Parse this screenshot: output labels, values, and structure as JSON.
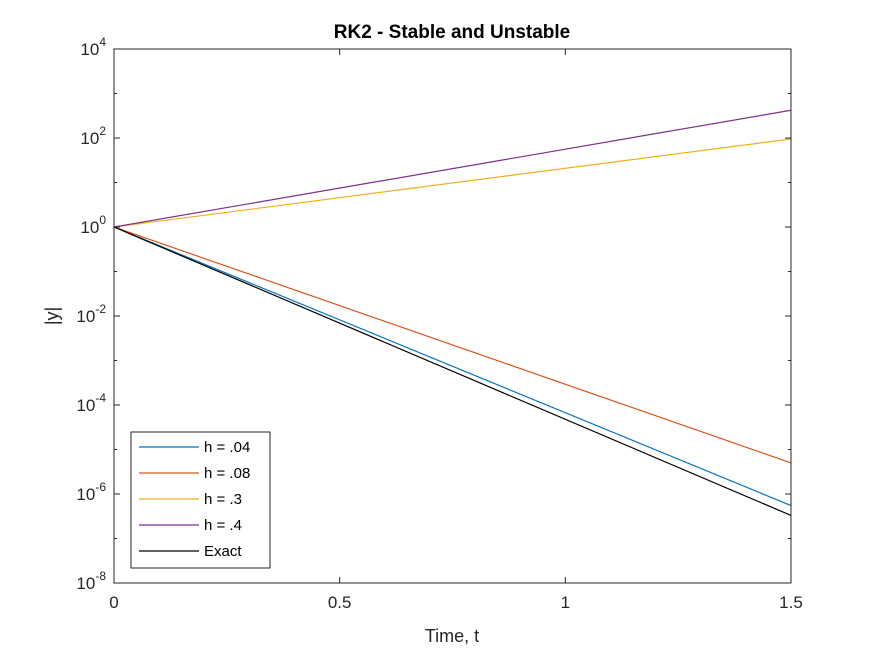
{
  "chart_data": {
    "type": "line",
    "title": "RK2 - Stable and Unstable",
    "xlabel": "Time, t",
    "ylabel": "|y|",
    "xlim": [
      0,
      1.5
    ],
    "ylim": [
      1e-08,
      10000.0
    ],
    "yscale": "log",
    "grid": false,
    "legend_location": "bottom-left",
    "x_ticks": [
      {
        "value": 0,
        "label": "0"
      },
      {
        "value": 0.5,
        "label": "0.5"
      },
      {
        "value": 1,
        "label": "1"
      },
      {
        "value": 1.5,
        "label": "1.5"
      }
    ],
    "y_ticks": [
      {
        "value": 1e-08,
        "base": "10",
        "exp": "-8"
      },
      {
        "value": 1e-06,
        "base": "10",
        "exp": "-6"
      },
      {
        "value": 0.0001,
        "base": "10",
        "exp": "-4"
      },
      {
        "value": 0.01,
        "base": "10",
        "exp": "-2"
      },
      {
        "value": 1,
        "base": "10",
        "exp": "0"
      },
      {
        "value": 100.0,
        "base": "10",
        "exp": "2"
      },
      {
        "value": 10000.0,
        "base": "10",
        "exp": "4"
      }
    ],
    "series": [
      {
        "name": "h = .04",
        "color": "#0072BD",
        "x": [
          0,
          1.5
        ],
        "y": [
          1,
          5.5e-07
        ]
      },
      {
        "name": "h = .08",
        "color": "#D95319",
        "x": [
          0,
          1.5
        ],
        "y": [
          1,
          5e-06
        ]
      },
      {
        "name": "h = .3",
        "color": "#EDB120",
        "x": [
          0,
          1.5
        ],
        "y": [
          1,
          95
        ]
      },
      {
        "name": "h = .4",
        "color": "#7E2F8E",
        "x": [
          0,
          1.5
        ],
        "y": [
          1,
          420
        ]
      },
      {
        "name": "Exact",
        "color": "#000000",
        "x": [
          0,
          1.5
        ],
        "y": [
          1,
          3.3e-07
        ]
      }
    ]
  }
}
